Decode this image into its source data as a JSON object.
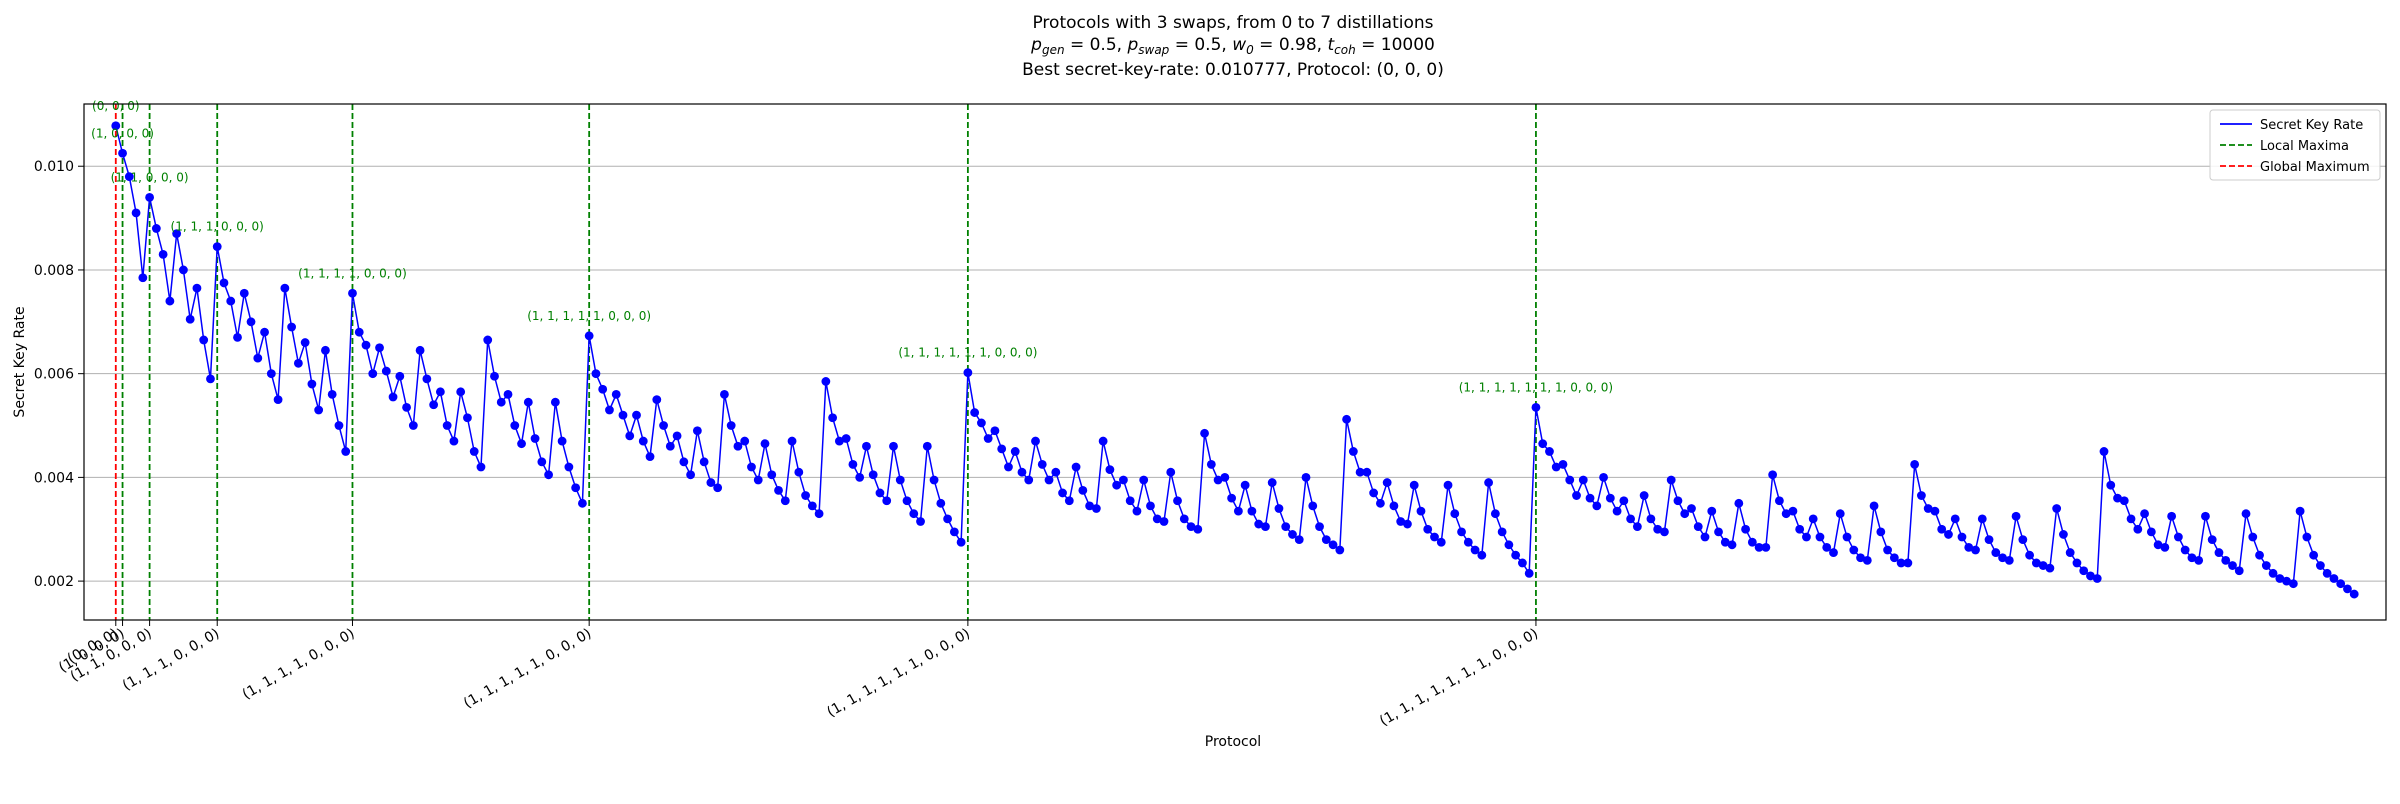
{
  "title": {
    "line1": "Protocols with 3 swaps, from 0 to 7 distillations",
    "line2_parts": [
      {
        "t": "p",
        "sub": "gen"
      },
      {
        "t": " = 0.5, "
      },
      {
        "t": "p",
        "sub": "swap"
      },
      {
        "t": " = 0.5, "
      },
      {
        "t": "w",
        "sub": "0"
      },
      {
        "t": " = 0.98, "
      },
      {
        "t": "t",
        "sub": "coh"
      },
      {
        "t": " = 10000"
      }
    ],
    "line3": "Best secret-key-rate: 0.010777, Protocol: (0, 0, 0)"
  },
  "chart_data": {
    "type": "line",
    "title": "Protocols with 3 swaps, from 0 to 7 distillations",
    "xlabel": "Protocol",
    "ylabel": "Secret Key Rate",
    "ylim": [
      0.00125,
      0.0112
    ],
    "yticks": [
      0.002,
      0.004,
      0.006,
      0.008,
      0.01
    ],
    "ytick_labels": [
      "0.002",
      "0.004",
      "0.006",
      "0.008",
      "0.010"
    ],
    "grid": "horizontal",
    "legend_position": "top-right",
    "legend": [
      {
        "label": "Secret Key Rate",
        "style": "solid",
        "color": "#0000ff"
      },
      {
        "label": "Local Maxima",
        "style": "dashed",
        "color": "#008000"
      },
      {
        "label": "Global Maximum",
        "style": "dashed",
        "color": "#ff0000"
      }
    ],
    "series": [
      {
        "name": "Secret Key Rate",
        "color": "#0000ff",
        "values": [
          0.01078,
          0.01025,
          0.0098,
          0.0091,
          0.00785,
          0.0094,
          0.0088,
          0.0083,
          0.0074,
          0.0087,
          0.008,
          0.00705,
          0.00765,
          0.00665,
          0.0059,
          0.00845,
          0.00775,
          0.0074,
          0.0067,
          0.00755,
          0.007,
          0.0063,
          0.0068,
          0.006,
          0.0055,
          0.00765,
          0.0069,
          0.0062,
          0.0066,
          0.0058,
          0.0053,
          0.00645,
          0.0056,
          0.005,
          0.0045,
          0.00755,
          0.0068,
          0.00655,
          0.006,
          0.0065,
          0.00605,
          0.00555,
          0.00595,
          0.00535,
          0.005,
          0.00645,
          0.0059,
          0.0054,
          0.00565,
          0.005,
          0.0047,
          0.00565,
          0.00515,
          0.0045,
          0.0042,
          0.00665,
          0.00595,
          0.00545,
          0.0056,
          0.005,
          0.00465,
          0.00545,
          0.00475,
          0.0043,
          0.00405,
          0.00545,
          0.0047,
          0.0042,
          0.0038,
          0.0035,
          0.00673,
          0.006,
          0.0057,
          0.0053,
          0.0056,
          0.0052,
          0.0048,
          0.0052,
          0.0047,
          0.0044,
          0.0055,
          0.005,
          0.0046,
          0.0048,
          0.0043,
          0.00405,
          0.0049,
          0.0043,
          0.0039,
          0.0038,
          0.0056,
          0.005,
          0.0046,
          0.0047,
          0.0042,
          0.00395,
          0.00465,
          0.00405,
          0.00375,
          0.00355,
          0.0047,
          0.0041,
          0.00365,
          0.00345,
          0.0033,
          0.00585,
          0.00515,
          0.0047,
          0.00475,
          0.00425,
          0.004,
          0.0046,
          0.00405,
          0.0037,
          0.00355,
          0.0046,
          0.00395,
          0.00355,
          0.0033,
          0.00315,
          0.0046,
          0.00395,
          0.0035,
          0.0032,
          0.00295,
          0.00275,
          0.00602,
          0.00525,
          0.00505,
          0.00475,
          0.0049,
          0.00455,
          0.0042,
          0.0045,
          0.0041,
          0.00395,
          0.0047,
          0.00425,
          0.00395,
          0.0041,
          0.0037,
          0.00355,
          0.0042,
          0.00375,
          0.00345,
          0.0034,
          0.0047,
          0.00415,
          0.00385,
          0.00395,
          0.00355,
          0.00335,
          0.00395,
          0.00345,
          0.0032,
          0.00315,
          0.0041,
          0.00355,
          0.0032,
          0.00305,
          0.003,
          0.00485,
          0.00425,
          0.00395,
          0.004,
          0.0036,
          0.00335,
          0.00385,
          0.00335,
          0.0031,
          0.00305,
          0.0039,
          0.0034,
          0.00305,
          0.0029,
          0.0028,
          0.004,
          0.00345,
          0.00305,
          0.0028,
          0.0027,
          0.0026,
          0.00512,
          0.0045,
          0.0041,
          0.0041,
          0.0037,
          0.0035,
          0.0039,
          0.00345,
          0.00315,
          0.0031,
          0.00385,
          0.00335,
          0.003,
          0.00285,
          0.00275,
          0.00385,
          0.0033,
          0.00295,
          0.00275,
          0.0026,
          0.0025,
          0.0039,
          0.0033,
          0.00295,
          0.0027,
          0.0025,
          0.00235,
          0.00215,
          0.00535,
          0.00465,
          0.0045,
          0.0042,
          0.00425,
          0.00395,
          0.00365,
          0.00395,
          0.0036,
          0.00345,
          0.004,
          0.0036,
          0.00335,
          0.00355,
          0.0032,
          0.00305,
          0.00365,
          0.0032,
          0.003,
          0.00295,
          0.00395,
          0.00355,
          0.0033,
          0.0034,
          0.00305,
          0.00285,
          0.00335,
          0.00295,
          0.00275,
          0.0027,
          0.0035,
          0.003,
          0.00275,
          0.00265,
          0.00265,
          0.00405,
          0.00355,
          0.0033,
          0.00335,
          0.003,
          0.00285,
          0.0032,
          0.00285,
          0.00265,
          0.00255,
          0.0033,
          0.00285,
          0.0026,
          0.00245,
          0.0024,
          0.00345,
          0.00295,
          0.0026,
          0.00245,
          0.00235,
          0.00235,
          0.00425,
          0.00365,
          0.0034,
          0.00335,
          0.003,
          0.0029,
          0.0032,
          0.00285,
          0.00265,
          0.0026,
          0.0032,
          0.0028,
          0.00255,
          0.00245,
          0.0024,
          0.00325,
          0.0028,
          0.0025,
          0.00235,
          0.0023,
          0.00225,
          0.0034,
          0.0029,
          0.00255,
          0.00235,
          0.0022,
          0.0021,
          0.00205,
          0.0045,
          0.00385,
          0.0036,
          0.00355,
          0.0032,
          0.003,
          0.0033,
          0.00295,
          0.0027,
          0.00265,
          0.00325,
          0.00285,
          0.0026,
          0.00245,
          0.0024,
          0.00325,
          0.0028,
          0.00255,
          0.0024,
          0.0023,
          0.0022,
          0.0033,
          0.00285,
          0.0025,
          0.0023,
          0.00215,
          0.00205,
          0.002,
          0.00195,
          0.00335,
          0.00285,
          0.0025,
          0.0023,
          0.00215,
          0.00205,
          0.00195,
          0.00185,
          0.00175
        ]
      }
    ],
    "local_maxima": [
      {
        "index": 1,
        "protocol": "(1, 0, 0, 0)"
      },
      {
        "index": 5,
        "protocol": "(1, 1, 0, 0, 0)"
      },
      {
        "index": 15,
        "protocol": "(1, 1, 1, 0, 0, 0)"
      },
      {
        "index": 35,
        "protocol": "(1, 1, 1, 1, 0, 0, 0)"
      },
      {
        "index": 70,
        "protocol": "(1, 1, 1, 1, 1, 0, 0, 0)"
      },
      {
        "index": 126,
        "protocol": "(1, 1, 1, 1, 1, 1, 0, 0, 0)"
      },
      {
        "index": 210,
        "protocol": "(1, 1, 1, 1, 1, 1, 1, 0, 0, 0)"
      }
    ],
    "global_maximum": {
      "index": 0,
      "protocol": "(0, 0, 0)",
      "value": 0.010777
    }
  }
}
